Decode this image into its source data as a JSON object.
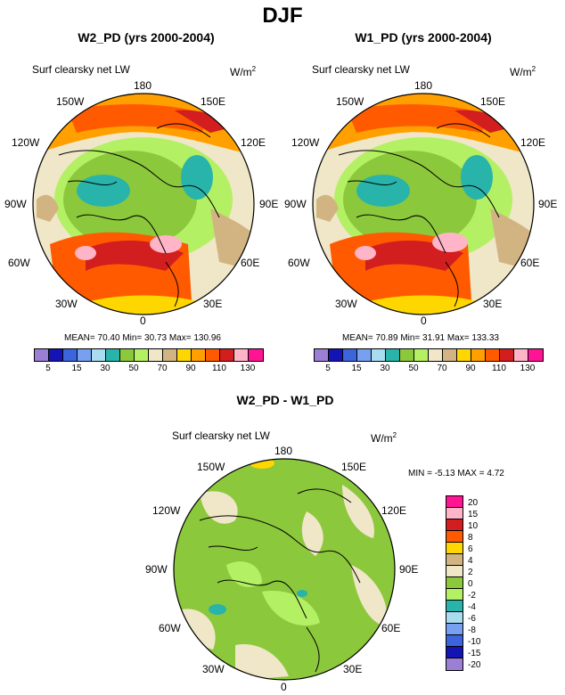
{
  "figure": {
    "title": "DJF",
    "panels": [
      {
        "title": "W2_PD (yrs 2000-2004)",
        "variable": "Surf clearsky net LW",
        "units_base": "W/m",
        "units_exp": "2",
        "stats": "MEAN= 70.40  Min= 30.73  Max= 130.96"
      },
      {
        "title": "W1_PD (yrs 2000-2004)",
        "variable": "Surf clearsky net LW",
        "units_base": "W/m",
        "units_exp": "2",
        "stats": "MEAN= 70.89  Min= 31.91  Max= 133.33"
      },
      {
        "title": "W2_PD - W1_PD",
        "variable": "Surf clearsky net LW",
        "units_base": "W/m",
        "units_exp": "2",
        "stats": "MIN =  -5.13 MAX =   4.72"
      }
    ],
    "longitude_labels": [
      "180",
      "150E",
      "120E",
      "90E",
      "60E",
      "30E",
      "0",
      "30W",
      "60W",
      "90W",
      "120W",
      "150W"
    ],
    "abs_colorbar": {
      "colors": [
        "#9a7fd4",
        "#1414b4",
        "#3c64dc",
        "#78a0f0",
        "#aadcf0",
        "#28b4aa",
        "#8cc83c",
        "#b4f064",
        "#f0e6c8",
        "#d2b482",
        "#ffd700",
        "#ffa000",
        "#ff5a00",
        "#d21e1e",
        "#ffb4c8",
        "#ff1493"
      ],
      "labels": [
        "5",
        "15",
        "30",
        "50",
        "70",
        "90",
        "110",
        "130"
      ]
    },
    "diff_colorbar": {
      "colors": [
        "#ff1493",
        "#ffb4c8",
        "#d21e1e",
        "#ff5a00",
        "#ffd700",
        "#d2b482",
        "#f0e6c8",
        "#8cc83c",
        "#b4f064",
        "#28b4aa",
        "#aadcf0",
        "#78a0f0",
        "#3c64dc",
        "#1414b4",
        "#9a7fd4"
      ],
      "labels": [
        "20",
        "15",
        "10",
        "8",
        "6",
        "4",
        "2",
        "0",
        "-2",
        "-4",
        "-6",
        "-8",
        "-10",
        "-15",
        "-20"
      ]
    },
    "colors": {
      "ocean_high": "#ff5a00",
      "ocean_mid": "#d21e1e",
      "land_green": "#8cc83c",
      "light_green": "#b4f064",
      "teal": "#28b4aa",
      "tan": "#f0e6c8",
      "brown": "#d2b482",
      "yellow": "#ffd700",
      "orange": "#ffa000",
      "pink": "#ffb4c8",
      "coast": "#000000"
    }
  }
}
